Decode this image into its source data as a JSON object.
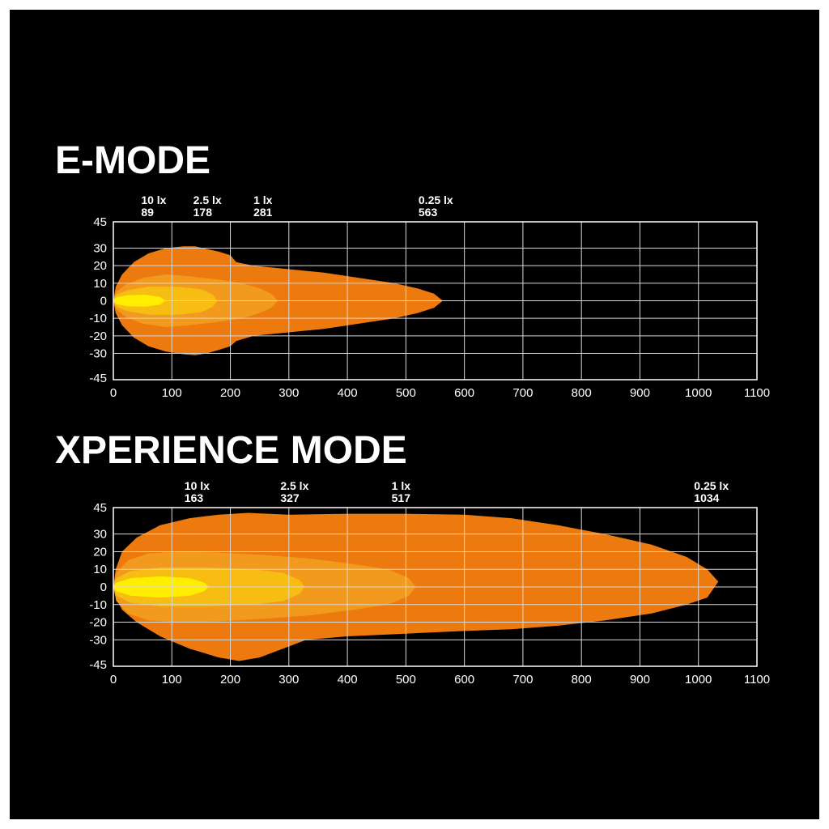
{
  "chart_data": [
    {
      "type": "area",
      "title": "E-MODE",
      "xlabel": "",
      "ylabel": "",
      "xlim": [
        0,
        1100
      ],
      "ylim": [
        -45,
        45
      ],
      "x_ticks": [
        0,
        100,
        200,
        300,
        400,
        500,
        600,
        700,
        800,
        900,
        1000,
        1100
      ],
      "y_ticks": [
        45,
        30,
        20,
        10,
        0,
        -10,
        -20,
        -30,
        -45
      ],
      "grid": true,
      "markers": [
        {
          "lux": "10 lx",
          "distance": "89",
          "x": 89
        },
        {
          "lux": "2.5 lx",
          "distance": "178",
          "x": 178
        },
        {
          "lux": "1 lx",
          "distance": "281",
          "x": 281
        },
        {
          "lux": "0.25 lx",
          "distance": "563",
          "x": 563
        }
      ],
      "zones": [
        {
          "lux": "0.25 lx",
          "color": "#ec7a0e",
          "points": [
            [
              0,
              0
            ],
            [
              4,
              8
            ],
            [
              15,
              15
            ],
            [
              35,
              22
            ],
            [
              60,
              27
            ],
            [
              90,
              30
            ],
            [
              120,
              31
            ],
            [
              140,
              31
            ],
            [
              160,
              29.5
            ],
            [
              180,
              28
            ],
            [
              200,
              26
            ],
            [
              210,
              22
            ],
            [
              240,
              20
            ],
            [
              300,
              18
            ],
            [
              360,
              16
            ],
            [
              420,
              13
            ],
            [
              480,
              10
            ],
            [
              520,
              7
            ],
            [
              548,
              4
            ],
            [
              563,
              0
            ],
            [
              548,
              -4
            ],
            [
              520,
              -7
            ],
            [
              480,
              -10
            ],
            [
              420,
              -13
            ],
            [
              360,
              -16
            ],
            [
              300,
              -18
            ],
            [
              240,
              -20
            ],
            [
              210,
              -23
            ],
            [
              200,
              -26
            ],
            [
              180,
              -28
            ],
            [
              160,
              -30
            ],
            [
              140,
              -31
            ],
            [
              120,
              -30.5
            ],
            [
              90,
              -29
            ],
            [
              60,
              -26
            ],
            [
              35,
              -21
            ],
            [
              15,
              -14
            ],
            [
              4,
              -7
            ]
          ]
        },
        {
          "lux": "1 lx",
          "color": "#f29a1d",
          "points": [
            [
              0,
              0
            ],
            [
              5,
              5
            ],
            [
              20,
              9
            ],
            [
              50,
              13
            ],
            [
              90,
              15
            ],
            [
              130,
              14
            ],
            [
              180,
              12
            ],
            [
              220,
              10
            ],
            [
              250,
              7
            ],
            [
              270,
              4
            ],
            [
              281,
              0
            ],
            [
              270,
              -4
            ],
            [
              250,
              -7
            ],
            [
              220,
              -10
            ],
            [
              180,
              -12
            ],
            [
              130,
              -14
            ],
            [
              90,
              -15
            ],
            [
              50,
              -13
            ],
            [
              20,
              -9
            ],
            [
              5,
              -5
            ]
          ]
        },
        {
          "lux": "2.5 lx",
          "color": "#f7bd12",
          "points": [
            [
              0,
              0
            ],
            [
              5,
              3.5
            ],
            [
              25,
              6
            ],
            [
              60,
              8
            ],
            [
              110,
              8
            ],
            [
              150,
              6.5
            ],
            [
              170,
              3.5
            ],
            [
              178,
              0
            ],
            [
              170,
              -3.5
            ],
            [
              150,
              -6.5
            ],
            [
              110,
              -8
            ],
            [
              60,
              -8
            ],
            [
              25,
              -6
            ],
            [
              5,
              -3.5
            ]
          ]
        },
        {
          "lux": "10 lx",
          "color": "#ffee00",
          "points": [
            [
              0,
              0
            ],
            [
              5,
              2
            ],
            [
              25,
              3.2
            ],
            [
              55,
              3.4
            ],
            [
              80,
              2.2
            ],
            [
              89,
              0
            ],
            [
              80,
              -2.2
            ],
            [
              55,
              -3.4
            ],
            [
              25,
              -3.2
            ],
            [
              5,
              -2
            ]
          ]
        }
      ]
    },
    {
      "type": "area",
      "title": "XPERIENCE MODE",
      "xlabel": "",
      "ylabel": "",
      "xlim": [
        0,
        1100
      ],
      "ylim": [
        -45,
        45
      ],
      "x_ticks": [
        0,
        100,
        200,
        300,
        400,
        500,
        600,
        700,
        800,
        900,
        1000,
        1100
      ],
      "y_ticks": [
        45,
        30,
        20,
        10,
        0,
        -10,
        -20,
        -30,
        -45
      ],
      "grid": true,
      "markers": [
        {
          "lux": "10 lx",
          "distance": "163",
          "x": 163
        },
        {
          "lux": "2.5 lx",
          "distance": "327",
          "x": 327
        },
        {
          "lux": "1 lx",
          "distance": "517",
          "x": 517
        },
        {
          "lux": "0.25 lx",
          "distance": "1034",
          "x": 1034
        }
      ],
      "zones": [
        {
          "lux": "0.25 lx",
          "color": "#ec7a0e",
          "points": [
            [
              0,
              0
            ],
            [
              4,
              10
            ],
            [
              15,
              20
            ],
            [
              40,
              28
            ],
            [
              80,
              35
            ],
            [
              130,
              39
            ],
            [
              180,
              41
            ],
            [
              230,
              42
            ],
            [
              300,
              41
            ],
            [
              400,
              41.5
            ],
            [
              500,
              41.5
            ],
            [
              600,
              41
            ],
            [
              680,
              39
            ],
            [
              760,
              35
            ],
            [
              840,
              30
            ],
            [
              920,
              24
            ],
            [
              980,
              17
            ],
            [
              1015,
              10
            ],
            [
              1034,
              3
            ],
            [
              1015,
              -6
            ],
            [
              980,
              -10
            ],
            [
              920,
              -15
            ],
            [
              840,
              -19
            ],
            [
              760,
              -22
            ],
            [
              680,
              -24
            ],
            [
              600,
              -25
            ],
            [
              500,
              -26.5
            ],
            [
              400,
              -28
            ],
            [
              330,
              -30
            ],
            [
              290,
              -35
            ],
            [
              250,
              -40
            ],
            [
              215,
              -42
            ],
            [
              180,
              -40
            ],
            [
              130,
              -35
            ],
            [
              80,
              -28
            ],
            [
              40,
              -20
            ],
            [
              15,
              -13
            ],
            [
              4,
              -6
            ]
          ]
        },
        {
          "lux": "1 lx",
          "color": "#f29a1d",
          "points": [
            [
              0,
              0
            ],
            [
              5,
              8
            ],
            [
              25,
              15
            ],
            [
              60,
              19
            ],
            [
              110,
              20
            ],
            [
              180,
              19.5
            ],
            [
              260,
              18
            ],
            [
              340,
              16
            ],
            [
              410,
              13
            ],
            [
              470,
              10
            ],
            [
              505,
              5
            ],
            [
              517,
              0
            ],
            [
              505,
              -5
            ],
            [
              470,
              -10
            ],
            [
              410,
              -13
            ],
            [
              340,
              -16
            ],
            [
              260,
              -18
            ],
            [
              180,
              -19.5
            ],
            [
              110,
              -20
            ],
            [
              60,
              -19
            ],
            [
              25,
              -15
            ],
            [
              5,
              -8
            ]
          ]
        },
        {
          "lux": "2.5 lx",
          "color": "#f7bd12",
          "points": [
            [
              0,
              0
            ],
            [
              5,
              5
            ],
            [
              30,
              9
            ],
            [
              80,
              11
            ],
            [
              160,
              11
            ],
            [
              240,
              10
            ],
            [
              290,
              8
            ],
            [
              318,
              4
            ],
            [
              327,
              0
            ],
            [
              318,
              -4
            ],
            [
              290,
              -8
            ],
            [
              240,
              -10
            ],
            [
              160,
              -11
            ],
            [
              80,
              -11
            ],
            [
              30,
              -9
            ],
            [
              5,
              -5
            ]
          ]
        },
        {
          "lux": "10 lx",
          "color": "#ffee00",
          "points": [
            [
              0,
              0
            ],
            [
              5,
              2.5
            ],
            [
              30,
              5
            ],
            [
              80,
              6
            ],
            [
              130,
              5
            ],
            [
              155,
              2.5
            ],
            [
              163,
              0
            ],
            [
              155,
              -2.5
            ],
            [
              130,
              -5
            ],
            [
              80,
              -6
            ],
            [
              30,
              -5
            ],
            [
              5,
              -2.5
            ]
          ]
        }
      ]
    }
  ]
}
